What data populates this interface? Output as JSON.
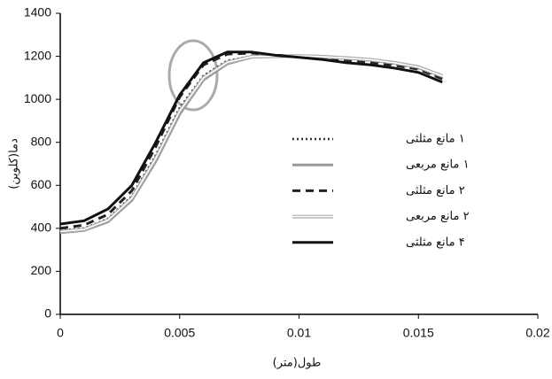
{
  "chart_data": {
    "type": "line",
    "x_label": "طول(متر)",
    "y_label": "دما(کلوین)",
    "x": [
      0,
      0.001,
      0.002,
      0.003,
      0.004,
      0.005,
      0.006,
      0.007,
      0.008,
      0.009,
      0.01,
      0.011,
      0.012,
      0.013,
      0.014,
      0.015,
      0.016
    ],
    "series": [
      {
        "name": "۱ مانع مثلثی",
        "color": "#333333",
        "line_style": "dotted",
        "values": [
          390,
          400,
          445,
          550,
          740,
          960,
          1110,
          1180,
          1200,
          1200,
          1200,
          1195,
          1190,
          1180,
          1165,
          1145,
          1100
        ]
      },
      {
        "name": "۱ مانع مربعی",
        "color": "#999999",
        "line_style": "solid-thick",
        "values": [
          380,
          390,
          430,
          530,
          710,
          930,
          1090,
          1165,
          1195,
          1200,
          1200,
          1198,
          1190,
          1182,
          1170,
          1150,
          1105
        ]
      },
      {
        "name": "۲ مانع مثلثی",
        "color": "#222222",
        "line_style": "dashed",
        "values": [
          400,
          415,
          465,
          575,
          780,
          1010,
          1160,
          1210,
          1215,
          1205,
          1200,
          1192,
          1182,
          1172,
          1158,
          1140,
          1095
        ]
      },
      {
        "name": "۲ مانع مربعی",
        "color": "#aaaaaa",
        "line_style": "double",
        "values": [
          385,
          395,
          438,
          540,
          725,
          945,
          1100,
          1172,
          1198,
          1200,
          1202,
          1198,
          1192,
          1184,
          1170,
          1150,
          1108
        ]
      },
      {
        "name": "۴ مانع مثلثی",
        "color": "#111111",
        "line_style": "solid-thick",
        "values": [
          420,
          435,
          490,
          600,
          800,
          1020,
          1170,
          1220,
          1220,
          1205,
          1195,
          1185,
          1170,
          1160,
          1145,
          1125,
          1080
        ]
      }
    ],
    "xlim": [
      0,
      0.02
    ],
    "xticks": [
      0,
      0.005,
      0.01,
      0.015,
      0.02
    ],
    "ylim": [
      0,
      1400
    ],
    "yticks": [
      0,
      200,
      400,
      600,
      800,
      1000,
      1200,
      1400
    ],
    "grid": false
  }
}
